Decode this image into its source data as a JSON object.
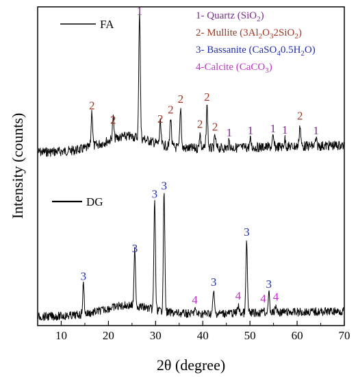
{
  "chart_data": {
    "type": "line",
    "xlabel": "2θ (degree)",
    "ylabel": "Intensity (counts)",
    "xlim": [
      5,
      70
    ],
    "x_ticks": [
      "10",
      "20",
      "30",
      "40",
      "50",
      "60",
      "70"
    ],
    "series": [
      {
        "name": "FA",
        "peaks": [
          {
            "x": 16.5,
            "height": 0.24,
            "label": "2"
          },
          {
            "x": 21.0,
            "height": 0.14,
            "label": "2"
          },
          {
            "x": 26.6,
            "height": 0.86,
            "label": "1"
          },
          {
            "x": 31.0,
            "height": 0.14,
            "label": "2"
          },
          {
            "x": 33.2,
            "height": 0.2,
            "label": "2"
          },
          {
            "x": 35.3,
            "height": 0.27,
            "label": "2"
          },
          {
            "x": 39.4,
            "height": 0.1,
            "label": "2"
          },
          {
            "x": 40.9,
            "height": 0.28,
            "label": "2"
          },
          {
            "x": 42.6,
            "height": 0.08,
            "label": "2"
          },
          {
            "x": 45.6,
            "height": 0.04,
            "label": "1"
          },
          {
            "x": 50.1,
            "height": 0.05,
            "label": "1"
          },
          {
            "x": 54.9,
            "height": 0.06,
            "label": "1"
          },
          {
            "x": 57.4,
            "height": 0.05,
            "label": "1"
          },
          {
            "x": 60.6,
            "height": 0.14,
            "label": "2"
          },
          {
            "x": 64.0,
            "height": 0.04,
            "label": "1"
          }
        ]
      },
      {
        "name": "DG",
        "peaks": [
          {
            "x": 14.7,
            "height": 0.19,
            "label": "3"
          },
          {
            "x": 25.6,
            "height": 0.36,
            "label": "3"
          },
          {
            "x": 29.8,
            "height": 0.7,
            "label": "3"
          },
          {
            "x": 31.8,
            "height": 0.75,
            "label": "3"
          },
          {
            "x": 38.3,
            "height": 0.03,
            "label": "4"
          },
          {
            "x": 42.3,
            "height": 0.14,
            "label": "3"
          },
          {
            "x": 47.5,
            "height": 0.05,
            "label": "4"
          },
          {
            "x": 49.3,
            "height": 0.45,
            "label": "3"
          },
          {
            "x": 52.8,
            "height": 0.03,
            "label": "4"
          },
          {
            "x": 54.0,
            "height": 0.12,
            "label": "3"
          },
          {
            "x": 55.5,
            "height": 0.04,
            "label": "4"
          }
        ]
      }
    ],
    "phases": [
      {
        "label": "1- Quartz (SiO2)",
        "color": "#7a2a8c"
      },
      {
        "label": "2- Mullite (3Al2O32SiO2)",
        "color": "#a1341f"
      },
      {
        "label": "3- Bassanite (CaSO40.5H2O)",
        "color": "#1f2bb0"
      },
      {
        "label": "4-Calcite (CaCO3)",
        "color": "#c030c8"
      }
    ],
    "legend_position": "top-left",
    "grid": false
  }
}
